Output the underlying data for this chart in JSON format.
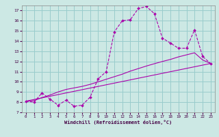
{
  "xlabel": "Windchill (Refroidissement éolien,°C)",
  "bg_color": "#cce8e4",
  "grid_color": "#99cccc",
  "line_color": "#aa00aa",
  "xlim": [
    -0.5,
    23.5
  ],
  "ylim": [
    7,
    17.5
  ],
  "xticks": [
    0,
    1,
    2,
    3,
    4,
    5,
    6,
    7,
    8,
    9,
    10,
    11,
    12,
    13,
    14,
    15,
    16,
    17,
    18,
    19,
    20,
    21,
    22,
    23
  ],
  "yticks": [
    7,
    8,
    9,
    10,
    11,
    12,
    13,
    14,
    15,
    16,
    17
  ],
  "line1_x": [
    0,
    1,
    2,
    3,
    4,
    5,
    6,
    7,
    8,
    9,
    10,
    11,
    12,
    13,
    14,
    15,
    16,
    17,
    18,
    19,
    20,
    21,
    22,
    23
  ],
  "line1_y": [
    8.1,
    8.0,
    8.9,
    8.3,
    7.7,
    8.2,
    7.6,
    7.7,
    8.5,
    10.3,
    11.0,
    14.9,
    16.0,
    16.1,
    17.2,
    17.4,
    16.7,
    14.3,
    13.8,
    13.3,
    13.3,
    15.1,
    12.5,
    11.8
  ],
  "line2_x": [
    0,
    23
  ],
  "line2_y": [
    8.1,
    11.8
  ],
  "line3_x": [
    0,
    1,
    2,
    3,
    4,
    5,
    6,
    7,
    8,
    9,
    10,
    11,
    12,
    13,
    14,
    15,
    16,
    17,
    18,
    19,
    20,
    21,
    22,
    23
  ],
  "line3_y": [
    8.1,
    8.15,
    8.45,
    8.7,
    9.0,
    9.25,
    9.4,
    9.55,
    9.75,
    10.0,
    10.25,
    10.5,
    10.75,
    11.05,
    11.3,
    11.55,
    11.78,
    12.0,
    12.2,
    12.45,
    12.65,
    12.85,
    12.15,
    11.8
  ]
}
